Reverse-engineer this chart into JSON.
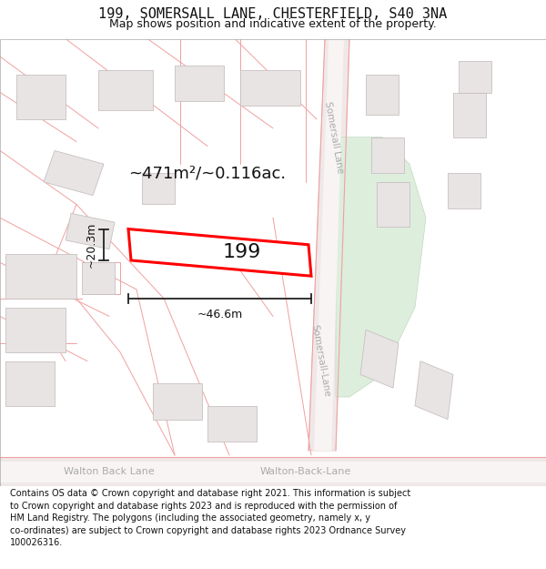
{
  "title": "199, SOMERSALL LANE, CHESTERFIELD, S40 3NA",
  "subtitle": "Map shows position and indicative extent of the property.",
  "footer": "Contains OS data © Crown copyright and database right 2021. This information is subject\nto Crown copyright and database rights 2023 and is reproduced with the permission of\nHM Land Registry. The polygons (including the associated geometry, namely x, y\nco-ordinates) are subject to Crown copyright and database rights 2023 Ordnance Survey\n100026316.",
  "area_text": "~471m²/~0.116ac.",
  "number_text": "199",
  "dim_width": "~46.6m",
  "dim_height": "~20.3m",
  "road_label_bottom_left": "Walton Back Lane",
  "road_label_bottom_right": "Walton-Back-Lane",
  "road_label_right_top": "Somersall Lane",
  "road_label_right_bottom": "Somersall-Lane",
  "plot_color": "#ff0000",
  "map_bg": "#faf8f8",
  "road_fill": "#f0e8e8",
  "road_edge": "#e0c8c8",
  "building_fill": "#e8e4e4",
  "building_edge": "#c8c0c0",
  "green_fill": "#ddeedd",
  "green_edge": "#c0d8c0",
  "dim_color": "#222222",
  "label_color": "#aaaaaa",
  "line_color": "#f0a0a0",
  "title_font": "DejaVu Sans",
  "footer_fontsize": 7,
  "title_fontsize": 11,
  "subtitle_fontsize": 9
}
